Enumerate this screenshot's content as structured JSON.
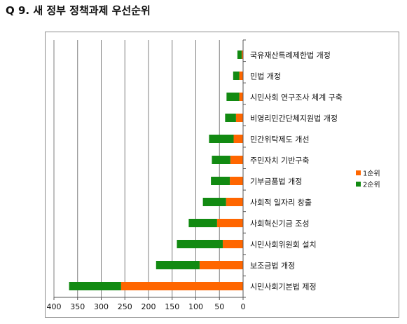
{
  "title": "Q 9. 새 정부 정책과제 우선순위",
  "colors": {
    "rank1": "#ff6600",
    "rank2": "#128a12",
    "grid": "#7f7f7f",
    "text": "#111111"
  },
  "chart_data": {
    "type": "bar",
    "orientation": "horizontal",
    "stacked": true,
    "x_reversed": true,
    "title": "",
    "xlabel": "",
    "ylabel": "",
    "categories": [
      "국유재산특례제한법 개정",
      "민법 개정",
      "시민사회 연구조사 체계 구축",
      "비영리민간단체지원법 개정",
      "민간위탁제도 개선",
      "주민자치 기반구축",
      "기부금품법 개정",
      "사회적 일자리 창출",
      "사회혁신기금 조성",
      "시민사회위원회 설치",
      "보조금법 개정",
      "시민사회기본법 제정"
    ],
    "series": [
      {
        "name": "1순위",
        "color": "#ff6600",
        "values": [
          3,
          8,
          8,
          15,
          20,
          27,
          28,
          36,
          55,
          43,
          92,
          258
        ]
      },
      {
        "name": "2순위",
        "color": "#128a12",
        "values": [
          9,
          13,
          27,
          23,
          52,
          39,
          40,
          49,
          60,
          97,
          92,
          110
        ]
      }
    ],
    "xlim": [
      0,
      400
    ],
    "xticks": [
      0,
      50,
      100,
      150,
      200,
      250,
      300,
      350,
      400
    ],
    "grid": true,
    "legend_position": "right"
  }
}
